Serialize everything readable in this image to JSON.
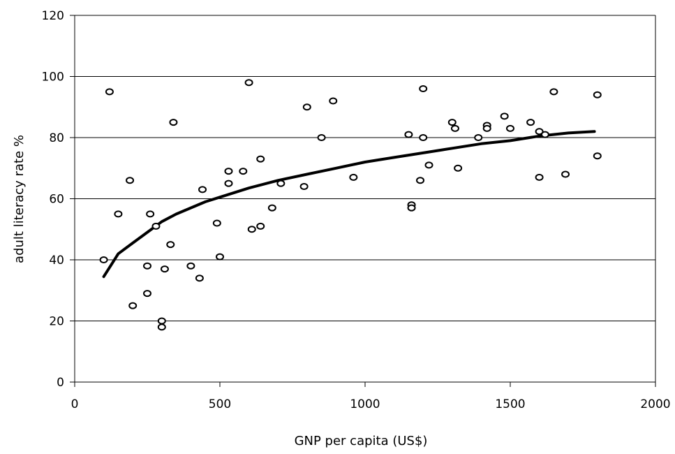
{
  "chart_data": {
    "type": "scatter",
    "title": "",
    "xlabel": "GNP per capita (US$)",
    "ylabel": "adult literacy rate %",
    "xlim": [
      0,
      2000
    ],
    "ylim": [
      0,
      120
    ],
    "x_ticks": [
      0,
      500,
      1000,
      1500,
      2000
    ],
    "y_ticks": [
      0,
      20,
      40,
      60,
      80,
      100,
      120
    ],
    "x_tick_labels": [
      "0",
      "500",
      "1000",
      "1500",
      "2000"
    ],
    "y_tick_labels": [
      "0",
      "20",
      "40",
      "60",
      "80",
      "100",
      "120"
    ],
    "grid": "horizontal",
    "legend": "none",
    "series": [
      {
        "kind": "points",
        "marker": "open-circle",
        "points": [
          {
            "x": 100,
            "y": 40
          },
          {
            "x": 120,
            "y": 95
          },
          {
            "x": 150,
            "y": 55
          },
          {
            "x": 190,
            "y": 66
          },
          {
            "x": 200,
            "y": 25
          },
          {
            "x": 250,
            "y": 38
          },
          {
            "x": 250,
            "y": 29
          },
          {
            "x": 260,
            "y": 55
          },
          {
            "x": 280,
            "y": 51
          },
          {
            "x": 300,
            "y": 20
          },
          {
            "x": 300,
            "y": 18
          },
          {
            "x": 310,
            "y": 37
          },
          {
            "x": 330,
            "y": 45
          },
          {
            "x": 340,
            "y": 85
          },
          {
            "x": 400,
            "y": 38
          },
          {
            "x": 430,
            "y": 34
          },
          {
            "x": 440,
            "y": 63
          },
          {
            "x": 490,
            "y": 52
          },
          {
            "x": 500,
            "y": 41
          },
          {
            "x": 530,
            "y": 69
          },
          {
            "x": 530,
            "y": 65
          },
          {
            "x": 580,
            "y": 69
          },
          {
            "x": 600,
            "y": 98
          },
          {
            "x": 610,
            "y": 50
          },
          {
            "x": 640,
            "y": 51
          },
          {
            "x": 640,
            "y": 73
          },
          {
            "x": 680,
            "y": 57
          },
          {
            "x": 710,
            "y": 65
          },
          {
            "x": 790,
            "y": 64
          },
          {
            "x": 800,
            "y": 90
          },
          {
            "x": 850,
            "y": 80
          },
          {
            "x": 890,
            "y": 92
          },
          {
            "x": 960,
            "y": 67
          },
          {
            "x": 1150,
            "y": 81
          },
          {
            "x": 1160,
            "y": 58
          },
          {
            "x": 1160,
            "y": 57
          },
          {
            "x": 1190,
            "y": 66
          },
          {
            "x": 1200,
            "y": 96
          },
          {
            "x": 1200,
            "y": 80
          },
          {
            "x": 1220,
            "y": 71
          },
          {
            "x": 1300,
            "y": 85
          },
          {
            "x": 1310,
            "y": 83
          },
          {
            "x": 1320,
            "y": 70
          },
          {
            "x": 1390,
            "y": 80
          },
          {
            "x": 1420,
            "y": 84
          },
          {
            "x": 1420,
            "y": 83
          },
          {
            "x": 1480,
            "y": 87
          },
          {
            "x": 1500,
            "y": 83
          },
          {
            "x": 1570,
            "y": 85
          },
          {
            "x": 1600,
            "y": 82
          },
          {
            "x": 1600,
            "y": 67
          },
          {
            "x": 1620,
            "y": 81
          },
          {
            "x": 1650,
            "y": 95
          },
          {
            "x": 1690,
            "y": 68
          },
          {
            "x": 1800,
            "y": 94
          },
          {
            "x": 1800,
            "y": 74
          }
        ]
      },
      {
        "kind": "trend-line",
        "style": "logarithmic",
        "points": [
          {
            "x": 100,
            "y": 34.5
          },
          {
            "x": 150,
            "y": 42
          },
          {
            "x": 200,
            "y": 45.5
          },
          {
            "x": 250,
            "y": 49
          },
          {
            "x": 300,
            "y": 52.5
          },
          {
            "x": 350,
            "y": 55
          },
          {
            "x": 400,
            "y": 57
          },
          {
            "x": 450,
            "y": 59
          },
          {
            "x": 500,
            "y": 60.5
          },
          {
            "x": 600,
            "y": 63.5
          },
          {
            "x": 700,
            "y": 66
          },
          {
            "x": 800,
            "y": 68
          },
          {
            "x": 900,
            "y": 70
          },
          {
            "x": 1000,
            "y": 72
          },
          {
            "x": 1100,
            "y": 73.5
          },
          {
            "x": 1200,
            "y": 75
          },
          {
            "x": 1300,
            "y": 76.5
          },
          {
            "x": 1400,
            "y": 78
          },
          {
            "x": 1500,
            "y": 79
          },
          {
            "x": 1600,
            "y": 80.5
          },
          {
            "x": 1700,
            "y": 81.5
          },
          {
            "x": 1790,
            "y": 82
          }
        ]
      }
    ]
  }
}
